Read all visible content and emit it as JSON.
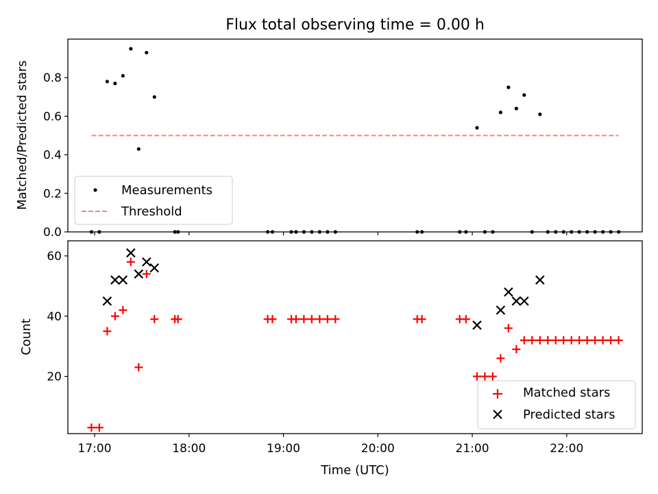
{
  "chart_data": [
    {
      "type": "scatter",
      "title": "Flux total observing time = 0.00 h",
      "xlabel": "",
      "ylabel": "Matched/Predicted stars",
      "xlim": [
        "16:43",
        "22:48"
      ],
      "ylim": [
        0,
        1.0
      ],
      "yticks": [
        "0.0",
        "0.2",
        "0.4",
        "0.6",
        "0.8"
      ],
      "legend_position": "lower-left",
      "series": [
        {
          "name": "Measurements",
          "marker": "dot",
          "color": "#000000",
          "points": [
            [
              "16:58",
              0.0
            ],
            [
              "17:03",
              0.0
            ],
            [
              "17:08",
              0.78
            ],
            [
              "17:13",
              0.77
            ],
            [
              "17:18",
              0.81
            ],
            [
              "17:23",
              0.95
            ],
            [
              "17:28",
              0.43
            ],
            [
              "17:33",
              0.93
            ],
            [
              "17:38",
              0.7
            ],
            [
              "17:51",
              0.0
            ],
            [
              "17:53",
              0.0
            ],
            [
              "18:50",
              0.0
            ],
            [
              "18:53",
              0.0
            ],
            [
              "19:05",
              0.0
            ],
            [
              "19:08",
              0.0
            ],
            [
              "19:13",
              0.0
            ],
            [
              "19:18",
              0.0
            ],
            [
              "19:23",
              0.0
            ],
            [
              "19:28",
              0.0
            ],
            [
              "19:33",
              0.0
            ],
            [
              "20:25",
              0.0
            ],
            [
              "20:28",
              0.0
            ],
            [
              "20:52",
              0.0
            ],
            [
              "20:56",
              0.0
            ],
            [
              "21:03",
              0.54
            ],
            [
              "21:08",
              0.0
            ],
            [
              "21:13",
              0.0
            ],
            [
              "21:18",
              0.62
            ],
            [
              "21:23",
              0.75
            ],
            [
              "21:28",
              0.64
            ],
            [
              "21:33",
              0.71
            ],
            [
              "21:38",
              0.0
            ],
            [
              "21:43",
              0.61
            ],
            [
              "21:48",
              0.0
            ],
            [
              "21:53",
              0.0
            ],
            [
              "21:58",
              0.0
            ],
            [
              "22:03",
              0.0
            ],
            [
              "22:08",
              0.0
            ],
            [
              "22:13",
              0.0
            ],
            [
              "22:18",
              0.0
            ],
            [
              "22:23",
              0.0
            ],
            [
              "22:28",
              0.0
            ],
            [
              "22:33",
              0.0
            ]
          ]
        },
        {
          "name": "Threshold",
          "marker": "dashed-line",
          "color": "#ff7f7f",
          "points": [
            [
              "16:58",
              0.5
            ],
            [
              "22:33",
              0.5
            ]
          ]
        }
      ]
    },
    {
      "type": "scatter",
      "title": "",
      "xlabel": "Time (UTC)",
      "ylabel": "Count",
      "xlim": [
        "16:43",
        "22:48"
      ],
      "ylim": [
        1,
        65
      ],
      "xticks": [
        "17:00",
        "18:00",
        "19:00",
        "20:00",
        "21:00",
        "22:00"
      ],
      "yticks": [
        "20",
        "40",
        "60"
      ],
      "legend_position": "lower-right",
      "series": [
        {
          "name": "Matched stars",
          "marker": "plus",
          "color": "#ff0000",
          "points": [
            [
              "16:58",
              3
            ],
            [
              "17:03",
              3
            ],
            [
              "17:08",
              35
            ],
            [
              "17:13",
              40
            ],
            [
              "17:18",
              42
            ],
            [
              "17:23",
              58
            ],
            [
              "17:28",
              23
            ],
            [
              "17:33",
              54
            ],
            [
              "17:38",
              39
            ],
            [
              "17:51",
              39
            ],
            [
              "17:53",
              39
            ],
            [
              "18:50",
              39
            ],
            [
              "18:53",
              39
            ],
            [
              "19:05",
              39
            ],
            [
              "19:08",
              39
            ],
            [
              "19:13",
              39
            ],
            [
              "19:18",
              39
            ],
            [
              "19:23",
              39
            ],
            [
              "19:28",
              39
            ],
            [
              "19:33",
              39
            ],
            [
              "20:25",
              39
            ],
            [
              "20:28",
              39
            ],
            [
              "20:52",
              39
            ],
            [
              "20:56",
              39
            ],
            [
              "21:03",
              20
            ],
            [
              "21:08",
              20
            ],
            [
              "21:13",
              20
            ],
            [
              "21:18",
              26
            ],
            [
              "21:23",
              36
            ],
            [
              "21:28",
              29
            ],
            [
              "21:33",
              32
            ],
            [
              "21:38",
              32
            ],
            [
              "21:43",
              32
            ],
            [
              "21:48",
              32
            ],
            [
              "21:53",
              32
            ],
            [
              "21:58",
              32
            ],
            [
              "22:03",
              32
            ],
            [
              "22:08",
              32
            ],
            [
              "22:13",
              32
            ],
            [
              "22:18",
              32
            ],
            [
              "22:23",
              32
            ],
            [
              "22:28",
              32
            ],
            [
              "22:33",
              32
            ]
          ]
        },
        {
          "name": "Predicted stars",
          "marker": "x",
          "color": "#000000",
          "points": [
            [
              "17:08",
              45
            ],
            [
              "17:13",
              52
            ],
            [
              "17:18",
              52
            ],
            [
              "17:23",
              61
            ],
            [
              "17:28",
              54
            ],
            [
              "17:33",
              58
            ],
            [
              "17:38",
              56
            ],
            [
              "21:03",
              37
            ],
            [
              "21:18",
              42
            ],
            [
              "21:23",
              48
            ],
            [
              "21:28",
              45
            ],
            [
              "21:33",
              45
            ],
            [
              "21:43",
              52
            ]
          ]
        }
      ]
    }
  ]
}
